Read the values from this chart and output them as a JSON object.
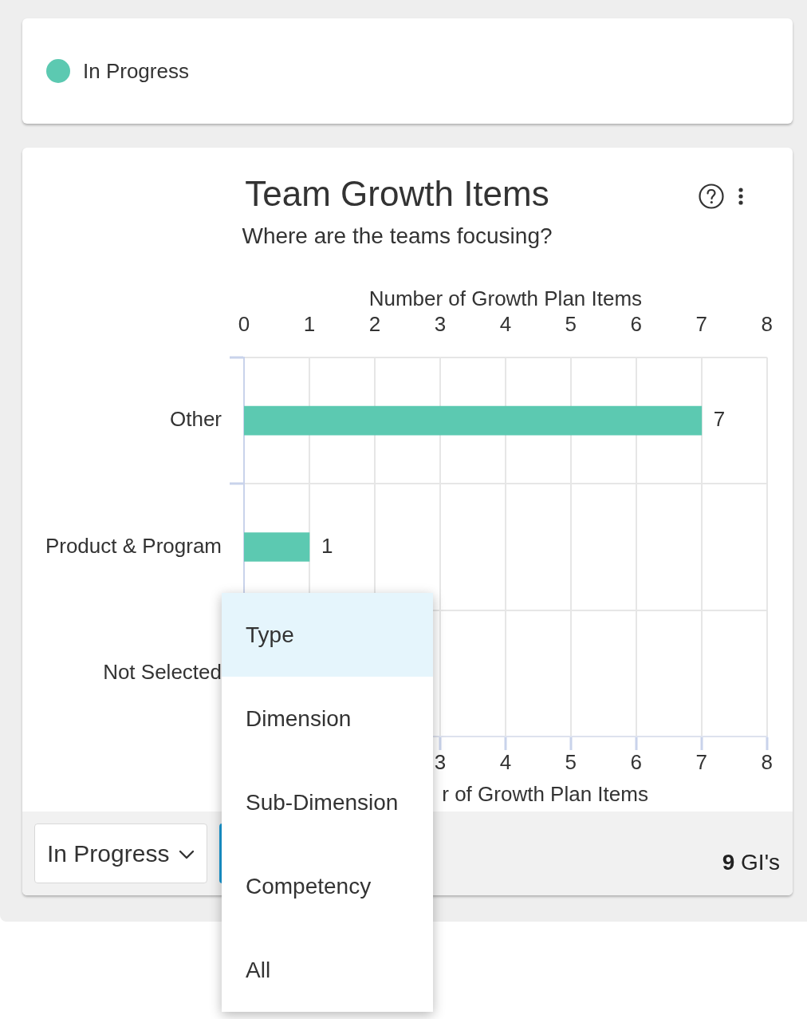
{
  "chart_data": {
    "type": "bar",
    "orientation": "horizontal",
    "title": "Team Growth Items",
    "subtitle": "Where are the teams focusing?",
    "x2label": "Number of Growth Plan Items",
    "xlabel": "r of Growth Plan Items",
    "categories": [
      "Other",
      "Product & Program",
      "Not Selected"
    ],
    "series": [
      {
        "name": "In Progress",
        "color": "#5cc9b1",
        "values": [
          7,
          1,
          null
        ]
      }
    ],
    "xlim": [
      0,
      8
    ],
    "xticks": [
      3,
      4,
      5,
      6,
      7,
      8
    ],
    "x2lim": [
      0,
      8
    ],
    "x2ticks": [
      0,
      1,
      2,
      3,
      4,
      5,
      6,
      7,
      8
    ],
    "grid": true,
    "legend": "top left",
    "data_labels": true,
    "annotations": [
      "In Progress",
      "Type",
      "Dimension",
      "Sub-Dimension",
      "Competency",
      "All",
      "9 GI's"
    ]
  }
}
